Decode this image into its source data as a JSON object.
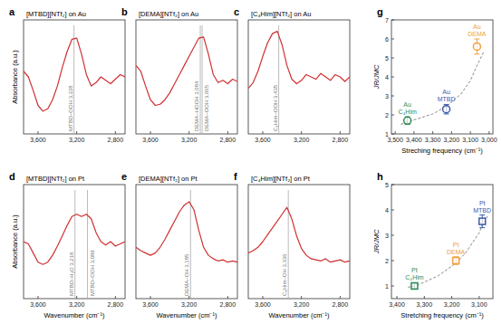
{
  "chart_data": [
    {
      "type": "line",
      "label": "a",
      "title": "[MTBD][NTf₂] on Au",
      "ylabel": "Absorbance (a.u.)",
      "color": "#d03030",
      "tick_labels": "x",
      "x": [
        3750,
        3700,
        3650,
        3600,
        3550,
        3500,
        3450,
        3400,
        3350,
        3300,
        3250,
        3200,
        3150,
        3100,
        3050,
        3000,
        2950,
        2900,
        2850,
        2800,
        2750,
        2700
      ],
      "values": [
        0.55,
        0.5,
        0.38,
        0.25,
        0.2,
        0.22,
        0.3,
        0.42,
        0.58,
        0.72,
        0.83,
        0.84,
        0.7,
        0.52,
        0.42,
        0.45,
        0.5,
        0.47,
        0.44,
        0.48,
        0.52,
        0.5
      ],
      "xlim": [
        3750,
        2700
      ],
      "ylim": [
        0,
        1
      ],
      "xticks": [
        {
          "value": 3600,
          "label": "3,600"
        },
        {
          "value": 3200,
          "label": "3,200"
        },
        {
          "value": 2800,
          "label": "2,800"
        }
      ],
      "annotations": [
        {
          "x": 3228,
          "text": "MTBD–OOH 3,228"
        }
      ]
    },
    {
      "type": "line",
      "label": "b",
      "title": "[DEMA][NTf₂] on Au",
      "color": "#d03030",
      "tick_labels": "x",
      "x": [
        3750,
        3700,
        3650,
        3600,
        3550,
        3500,
        3450,
        3400,
        3350,
        3300,
        3250,
        3200,
        3150,
        3100,
        3050,
        3000,
        2950,
        2900,
        2850,
        2800,
        2750,
        2700
      ],
      "values": [
        0.6,
        0.55,
        0.42,
        0.3,
        0.25,
        0.26,
        0.3,
        0.36,
        0.44,
        0.52,
        0.6,
        0.68,
        0.76,
        0.84,
        0.85,
        0.7,
        0.52,
        0.45,
        0.47,
        0.44,
        0.48,
        0.46
      ],
      "xlim": [
        3750,
        2700
      ],
      "ylim": [
        0,
        1
      ],
      "xticks": [
        {
          "value": 3600,
          "label": "3,600"
        },
        {
          "value": 3200,
          "label": "3,200"
        },
        {
          "value": 2800,
          "label": "2,800"
        }
      ],
      "annotations": [
        {
          "x": 3084,
          "text": "DEMA–HOOH 3,084"
        },
        {
          "x": 3065,
          "text": "DEMA–OOH 3,065"
        }
      ]
    },
    {
      "type": "line",
      "label": "c",
      "title": "[C₄Him][NTf₂] on Au",
      "color": "#d03030",
      "tick_labels": "x",
      "x": [
        3750,
        3700,
        3650,
        3600,
        3550,
        3500,
        3450,
        3400,
        3350,
        3300,
        3250,
        3200,
        3150,
        3100,
        3050,
        3000,
        2950,
        2900,
        2850,
        2800,
        2750,
        2700
      ],
      "values": [
        0.4,
        0.45,
        0.55,
        0.68,
        0.8,
        0.88,
        0.9,
        0.78,
        0.6,
        0.48,
        0.44,
        0.47,
        0.52,
        0.5,
        0.48,
        0.53,
        0.5,
        0.47,
        0.52,
        0.5,
        0.46,
        0.5
      ],
      "xlim": [
        3750,
        2700
      ],
      "ylim": [
        0,
        1
      ],
      "xticks": [
        {
          "value": 3600,
          "label": "3,600"
        },
        {
          "value": 3200,
          "label": "3,200"
        },
        {
          "value": 2800,
          "label": "2,800"
        }
      ],
      "annotations": [
        {
          "x": 3435,
          "text": "C₄Him–OOH 3,435"
        }
      ]
    },
    {
      "type": "line",
      "label": "d",
      "title": "[MTBD][NTf₂] on Pt",
      "ylabel": "Absorbance (a.u.)",
      "xlabel": "Wavenumber (cm⁻¹)",
      "color": "#d03030",
      "tick_labels": "x",
      "x": [
        3750,
        3700,
        3650,
        3600,
        3550,
        3500,
        3450,
        3400,
        3350,
        3300,
        3250,
        3200,
        3150,
        3100,
        3050,
        3000,
        2950,
        2900,
        2850,
        2800,
        2750,
        2700
      ],
      "values": [
        0.5,
        0.48,
        0.4,
        0.32,
        0.3,
        0.32,
        0.38,
        0.46,
        0.55,
        0.64,
        0.72,
        0.74,
        0.72,
        0.74,
        0.7,
        0.58,
        0.5,
        0.47,
        0.5,
        0.46,
        0.48,
        0.5
      ],
      "xlim": [
        3750,
        2700
      ],
      "ylim": [
        0,
        1
      ],
      "xticks": [
        {
          "value": 3600,
          "label": "3,600"
        },
        {
          "value": 3200,
          "label": "3,200"
        },
        {
          "value": 2800,
          "label": "2,800"
        }
      ],
      "annotations": [
        {
          "x": 3218,
          "text": "MTBD–H₂O 3,218"
        },
        {
          "x": 3089,
          "text": "MTBD–OOH 3,089"
        }
      ]
    },
    {
      "type": "line",
      "label": "e",
      "title": "[DEMA][NTf₂] on Pt",
      "xlabel": "Wavenumber (cm⁻¹)",
      "color": "#d03030",
      "tick_labels": "x",
      "x": [
        3750,
        3700,
        3650,
        3600,
        3550,
        3500,
        3450,
        3400,
        3350,
        3300,
        3250,
        3200,
        3150,
        3100,
        3050,
        3000,
        2950,
        2900,
        2850,
        2800,
        2750,
        2700
      ],
      "values": [
        0.45,
        0.42,
        0.4,
        0.38,
        0.4,
        0.45,
        0.52,
        0.6,
        0.68,
        0.76,
        0.82,
        0.85,
        0.78,
        0.6,
        0.45,
        0.38,
        0.35,
        0.33,
        0.34,
        0.32,
        0.33,
        0.32
      ],
      "xlim": [
        3750,
        2700
      ],
      "ylim": [
        0,
        1
      ],
      "xticks": [
        {
          "value": 3600,
          "label": "3,600"
        },
        {
          "value": 3200,
          "label": "3,200"
        },
        {
          "value": 2800,
          "label": "2,800"
        }
      ],
      "annotations": [
        {
          "x": 3185,
          "text": "DEMA–OH 3,185"
        }
      ]
    },
    {
      "type": "line",
      "label": "f",
      "title": "[C₄Him][NTf₂] on Pt",
      "xlabel": "Wavenumber (cm⁻¹)",
      "color": "#d03030",
      "tick_labels": "x",
      "x": [
        3750,
        3700,
        3650,
        3600,
        3550,
        3500,
        3450,
        3400,
        3350,
        3300,
        3250,
        3200,
        3150,
        3100,
        3050,
        3000,
        2950,
        2900,
        2850,
        2800,
        2750,
        2700
      ],
      "values": [
        0.4,
        0.42,
        0.45,
        0.5,
        0.56,
        0.62,
        0.68,
        0.74,
        0.8,
        0.7,
        0.55,
        0.44,
        0.38,
        0.35,
        0.34,
        0.33,
        0.35,
        0.32,
        0.33,
        0.34,
        0.32,
        0.33
      ],
      "xlim": [
        3750,
        2700
      ],
      "ylim": [
        0,
        1
      ],
      "xticks": [
        {
          "value": 3600,
          "label": "3,600"
        },
        {
          "value": 3200,
          "label": "3,200"
        },
        {
          "value": 2800,
          "label": "2,800"
        }
      ],
      "annotations": [
        {
          "x": 3336,
          "text": "C₄Him–OH 3,336"
        }
      ]
    },
    {
      "type": "scatter",
      "label": "g",
      "xlabel": "Streching frequency (cm⁻¹)",
      "ylabel": "JR/JMC",
      "marker": "circle",
      "x": [
        3435,
        3228,
        3065
      ],
      "values": [
        1.7,
        2.3,
        5.6
      ],
      "errors": [
        0.2,
        0.25,
        0.4
      ],
      "colors": [
        "#2e8b57",
        "#3b5ba9",
        "#f0a040"
      ],
      "point_labels": [
        [
          "Au",
          "C₄Him"
        ],
        [
          "Au",
          "MTBD"
        ],
        [
          "Au",
          "DEMA"
        ]
      ],
      "fit": {
        "x": [
          3470,
          3435,
          3380,
          3300,
          3228,
          3150,
          3100,
          3065,
          3030
        ],
        "values": [
          1.5,
          1.65,
          1.8,
          2.05,
          2.45,
          3.1,
          3.8,
          4.6,
          5.3
        ],
        "line_style": "dashed",
        "color": "#888888"
      },
      "xlim": [
        3520,
        2980
      ],
      "ylim": [
        1,
        7
      ],
      "xticks": [
        {
          "value": 3500,
          "label": "3,500"
        },
        {
          "value": 3400,
          "label": "3,400"
        },
        {
          "value": 3300,
          "label": "3,300"
        },
        {
          "value": 3200,
          "label": "3,200"
        },
        {
          "value": 3100,
          "label": "3,100"
        },
        {
          "value": 3000,
          "label": "3,000"
        }
      ],
      "yticks": [
        1,
        2,
        3,
        4,
        5,
        6,
        7
      ]
    },
    {
      "type": "scatter",
      "label": "h",
      "xlabel": "Stretching frequency (cm⁻¹)",
      "ylabel": "JR/JMC",
      "marker": "square",
      "x": [
        3336,
        3185,
        3089
      ],
      "values": [
        1.0,
        2.0,
        3.55
      ],
      "errors": [
        0.1,
        0.15,
        0.25
      ],
      "colors": [
        "#2e8b57",
        "#f0a040",
        "#3b5ba9"
      ],
      "point_labels": [
        [
          "Pt",
          "C₄Him"
        ],
        [
          "Pt",
          "DEMA"
        ],
        [
          "Pt",
          "MTBD"
        ]
      ],
      "fit": {
        "x": [
          3360,
          3336,
          3300,
          3250,
          3185,
          3150,
          3100,
          3089,
          3070
        ],
        "values": [
          0.95,
          1.0,
          1.15,
          1.4,
          1.9,
          2.3,
          3.1,
          3.4,
          3.75
        ],
        "line_style": "dashed",
        "color": "#888888"
      },
      "xlim": [
        3420,
        3050
      ],
      "ylim": [
        0.5,
        5
      ],
      "xticks": [
        {
          "value": 3400,
          "label": "3,400"
        },
        {
          "value": 3300,
          "label": "3,300"
        },
        {
          "value": 3200,
          "label": "3,200"
        },
        {
          "value": 3100,
          "label": "3,100"
        }
      ],
      "yticks": [
        1,
        2,
        3,
        4,
        5
      ]
    }
  ]
}
